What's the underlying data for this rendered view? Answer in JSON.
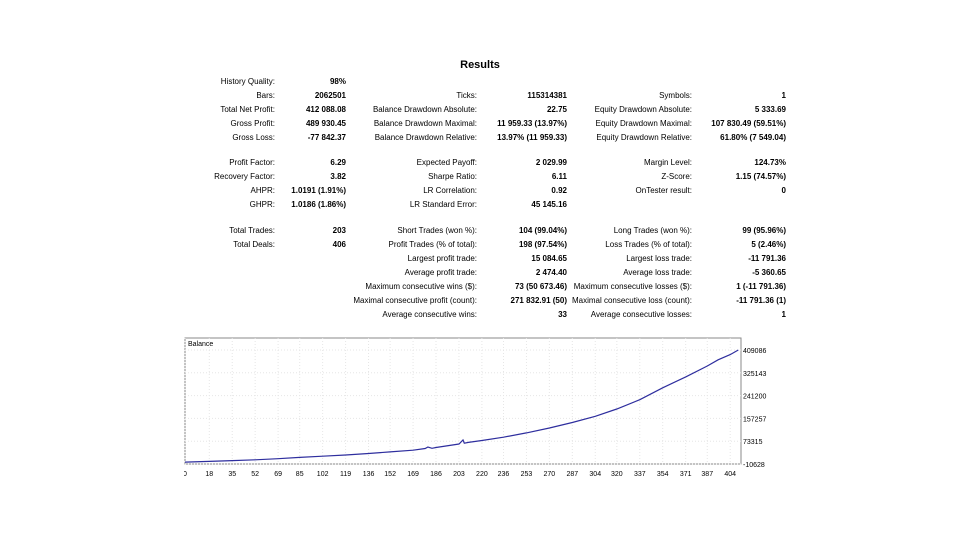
{
  "title": "Results",
  "stats": {
    "history_quality": {
      "label": "History Quality:",
      "value": "98%"
    },
    "bars": {
      "label": "Bars:",
      "value": "2062501"
    },
    "ticks": {
      "label": "Ticks:",
      "value": "115314381"
    },
    "symbols": {
      "label": "Symbols:",
      "value": "1"
    },
    "total_net_profit": {
      "label": "Total Net Profit:",
      "value": "412 088.08"
    },
    "balance_dd_abs": {
      "label": "Balance Drawdown Absolute:",
      "value": "22.75"
    },
    "equity_dd_abs": {
      "label": "Equity Drawdown Absolute:",
      "value": "5 333.69"
    },
    "gross_profit": {
      "label": "Gross Profit:",
      "value": "489 930.45"
    },
    "balance_dd_max": {
      "label": "Balance Drawdown Maximal:",
      "value": "11 959.33 (13.97%)"
    },
    "equity_dd_max": {
      "label": "Equity Drawdown Maximal:",
      "value": "107 830.49 (59.51%)"
    },
    "gross_loss": {
      "label": "Gross Loss:",
      "value": "-77 842.37"
    },
    "balance_dd_rel": {
      "label": "Balance Drawdown Relative:",
      "value": "13.97% (11 959.33)"
    },
    "equity_dd_rel": {
      "label": "Equity Drawdown Relative:",
      "value": "61.80% (7 549.04)"
    },
    "profit_factor": {
      "label": "Profit Factor:",
      "value": "6.29"
    },
    "expected_payoff": {
      "label": "Expected Payoff:",
      "value": "2 029.99"
    },
    "margin_level": {
      "label": "Margin Level:",
      "value": "124.73%"
    },
    "recovery_factor": {
      "label": "Recovery Factor:",
      "value": "3.82"
    },
    "sharpe_ratio": {
      "label": "Sharpe Ratio:",
      "value": "6.11"
    },
    "z_score": {
      "label": "Z-Score:",
      "value": "1.15 (74.57%)"
    },
    "ahpr": {
      "label": "AHPR:",
      "value": "1.0191 (1.91%)"
    },
    "lr_correlation": {
      "label": "LR Correlation:",
      "value": "0.92"
    },
    "ontester": {
      "label": "OnTester result:",
      "value": "0"
    },
    "ghpr": {
      "label": "GHPR:",
      "value": "1.0186 (1.86%)"
    },
    "lr_std_error": {
      "label": "LR Standard Error:",
      "value": "45 145.16"
    },
    "total_trades": {
      "label": "Total Trades:",
      "value": "203"
    },
    "short_trades": {
      "label": "Short Trades (won %):",
      "value": "104 (99.04%)"
    },
    "long_trades": {
      "label": "Long Trades (won %):",
      "value": "99 (95.96%)"
    },
    "total_deals": {
      "label": "Total Deals:",
      "value": "406"
    },
    "profit_trades": {
      "label": "Profit Trades (% of total):",
      "value": "198 (97.54%)"
    },
    "loss_trades": {
      "label": "Loss Trades (% of total):",
      "value": "5 (2.46%)"
    },
    "largest_profit": {
      "label": "Largest profit trade:",
      "value": "15 084.65"
    },
    "largest_loss": {
      "label": "Largest loss trade:",
      "value": "-11 791.36"
    },
    "avg_profit": {
      "label": "Average profit trade:",
      "value": "2 474.40"
    },
    "avg_loss": {
      "label": "Average loss trade:",
      "value": "-5 360.65"
    },
    "max_consec_wins": {
      "label": "Maximum consecutive wins ($):",
      "value": "73 (50 673.46)"
    },
    "max_consec_losses": {
      "label": "Maximum consecutive losses ($):",
      "value": "1 (-11 791.36)"
    },
    "maximal_consec_profit": {
      "label": "Maximal consecutive profit (count):",
      "value": "271 832.91 (50)"
    },
    "maximal_consec_loss": {
      "label": "Maximal consecutive loss (count):",
      "value": "-11 791.36 (1)"
    },
    "avg_consec_wins": {
      "label": "Average consecutive wins:",
      "value": "33"
    },
    "avg_consec_losses": {
      "label": "Average consecutive losses:",
      "value": "1"
    }
  },
  "chart_data": {
    "type": "line",
    "legend": "Balance",
    "line_color": "#2e2e9e",
    "x_ticks": [
      0,
      18,
      35,
      52,
      69,
      85,
      102,
      119,
      136,
      152,
      169,
      186,
      203,
      220,
      236,
      253,
      270,
      287,
      304,
      320,
      337,
      354,
      371,
      387,
      404
    ],
    "y_ticks": [
      409086,
      325143,
      241200,
      157257,
      73315,
      -10628
    ],
    "xlim": [
      0,
      412
    ],
    "ylim": [
      -10628,
      409086
    ],
    "grid": true,
    "series": [
      {
        "x": [
          0,
          18,
          35,
          52,
          69,
          85,
          102,
          119,
          136,
          152,
          169,
          178,
          180,
          183,
          186,
          203,
          206,
          207,
          210,
          220,
          236,
          253,
          270,
          287,
          304,
          320,
          337,
          354,
          371,
          387,
          395,
          404,
          410
        ],
        "y": [
          -3500,
          -1000,
          2000,
          5000,
          9000,
          13500,
          18000,
          22500,
          28000,
          34000,
          40000,
          46500,
          52000,
          47000,
          50000,
          63000,
          78000,
          66000,
          69000,
          76000,
          88000,
          104000,
          122000,
          142000,
          165000,
          192000,
          226000,
          270000,
          310000,
          350000,
          373000,
          392000,
          409086
        ]
      }
    ]
  }
}
